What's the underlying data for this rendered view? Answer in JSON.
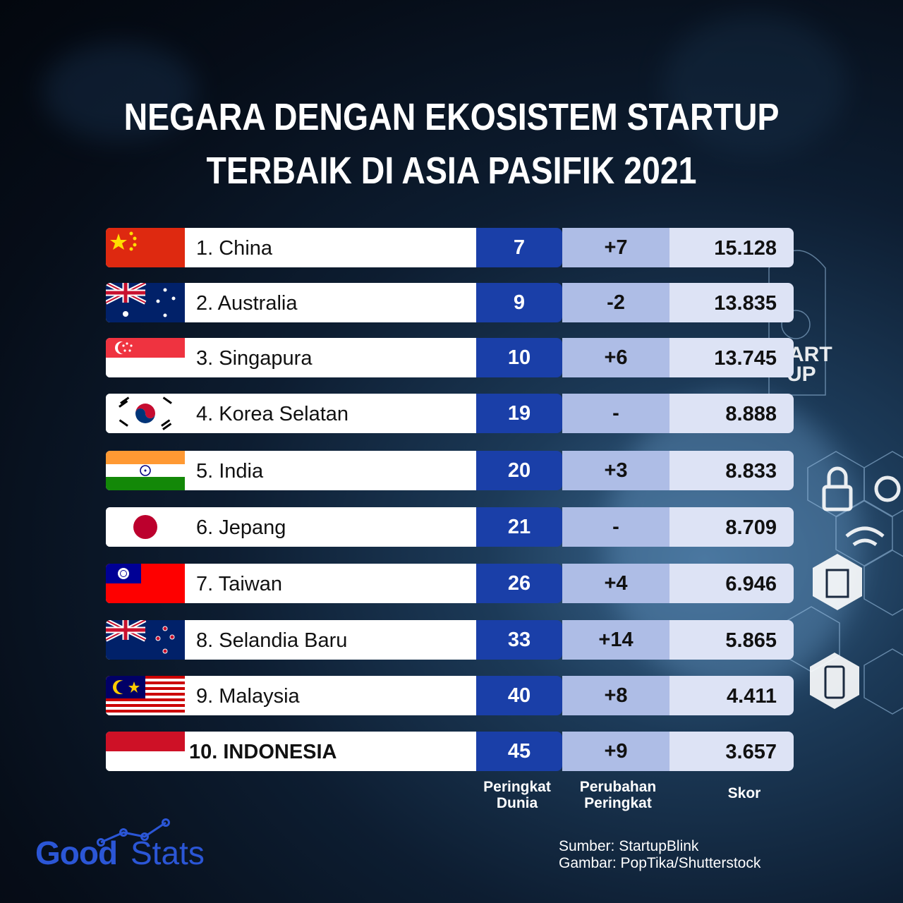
{
  "title": {
    "line1": "NEGARA DENGAN EKOSISTEM STARTUP",
    "line2": "TERBAIK DI ASIA PASIFIK 2021"
  },
  "colors": {
    "rank_bg": "#1a3fa8",
    "change_bg": "#aebde6",
    "score_bg": "#dde3f5",
    "brand": "#2b56d6"
  },
  "chart_data": {
    "type": "table",
    "columns": [
      "Peringkat Dunia",
      "Perubahan Peringkat",
      "Skor"
    ],
    "rows": [
      {
        "label": "1. China",
        "flag": "china-flag",
        "world_rank": "7",
        "rank_change": "+7",
        "score": "15.128"
      },
      {
        "label": "2. Australia",
        "flag": "australia-flag",
        "world_rank": "9",
        "rank_change": "-2",
        "score": "13.835"
      },
      {
        "label": "3. Singapura",
        "flag": "singapore-flag",
        "world_rank": "10",
        "rank_change": "+6",
        "score": "13.745"
      },
      {
        "label": "4. Korea Selatan",
        "flag": "south-korea-flag",
        "world_rank": "19",
        "rank_change": "-",
        "score": "8.888"
      },
      {
        "label": "5. India",
        "flag": "india-flag",
        "world_rank": "20",
        "rank_change": "+3",
        "score": "8.833"
      },
      {
        "label": "6. Jepang",
        "flag": "japan-flag",
        "world_rank": "21",
        "rank_change": "-",
        "score": "8.709"
      },
      {
        "label": "7. Taiwan",
        "flag": "taiwan-flag",
        "world_rank": "26",
        "rank_change": "+4",
        "score": "6.946"
      },
      {
        "label": "8. Selandia Baru",
        "flag": "new-zealand-flag",
        "world_rank": "33",
        "rank_change": "+14",
        "score": "5.865"
      },
      {
        "label": "9. Malaysia",
        "flag": "malaysia-flag",
        "world_rank": "40",
        "rank_change": "+8",
        "score": "4.411"
      },
      {
        "label": "10. INDONESIA",
        "flag": "indonesia-flag",
        "world_rank": "45",
        "rank_change": "+9",
        "score": "3.657"
      }
    ]
  },
  "headers": {
    "rank": {
      "line1": "Peringkat",
      "line2": "Dunia"
    },
    "change": {
      "line1": "Perubahan",
      "line2": "Peringkat"
    },
    "score": "Skor"
  },
  "footer": {
    "source": "Sumber: StartupBlink",
    "image_credit": "Gambar: PopTika/Shutterstock"
  },
  "logo": {
    "part1": "Good",
    "part2": "Stats"
  }
}
